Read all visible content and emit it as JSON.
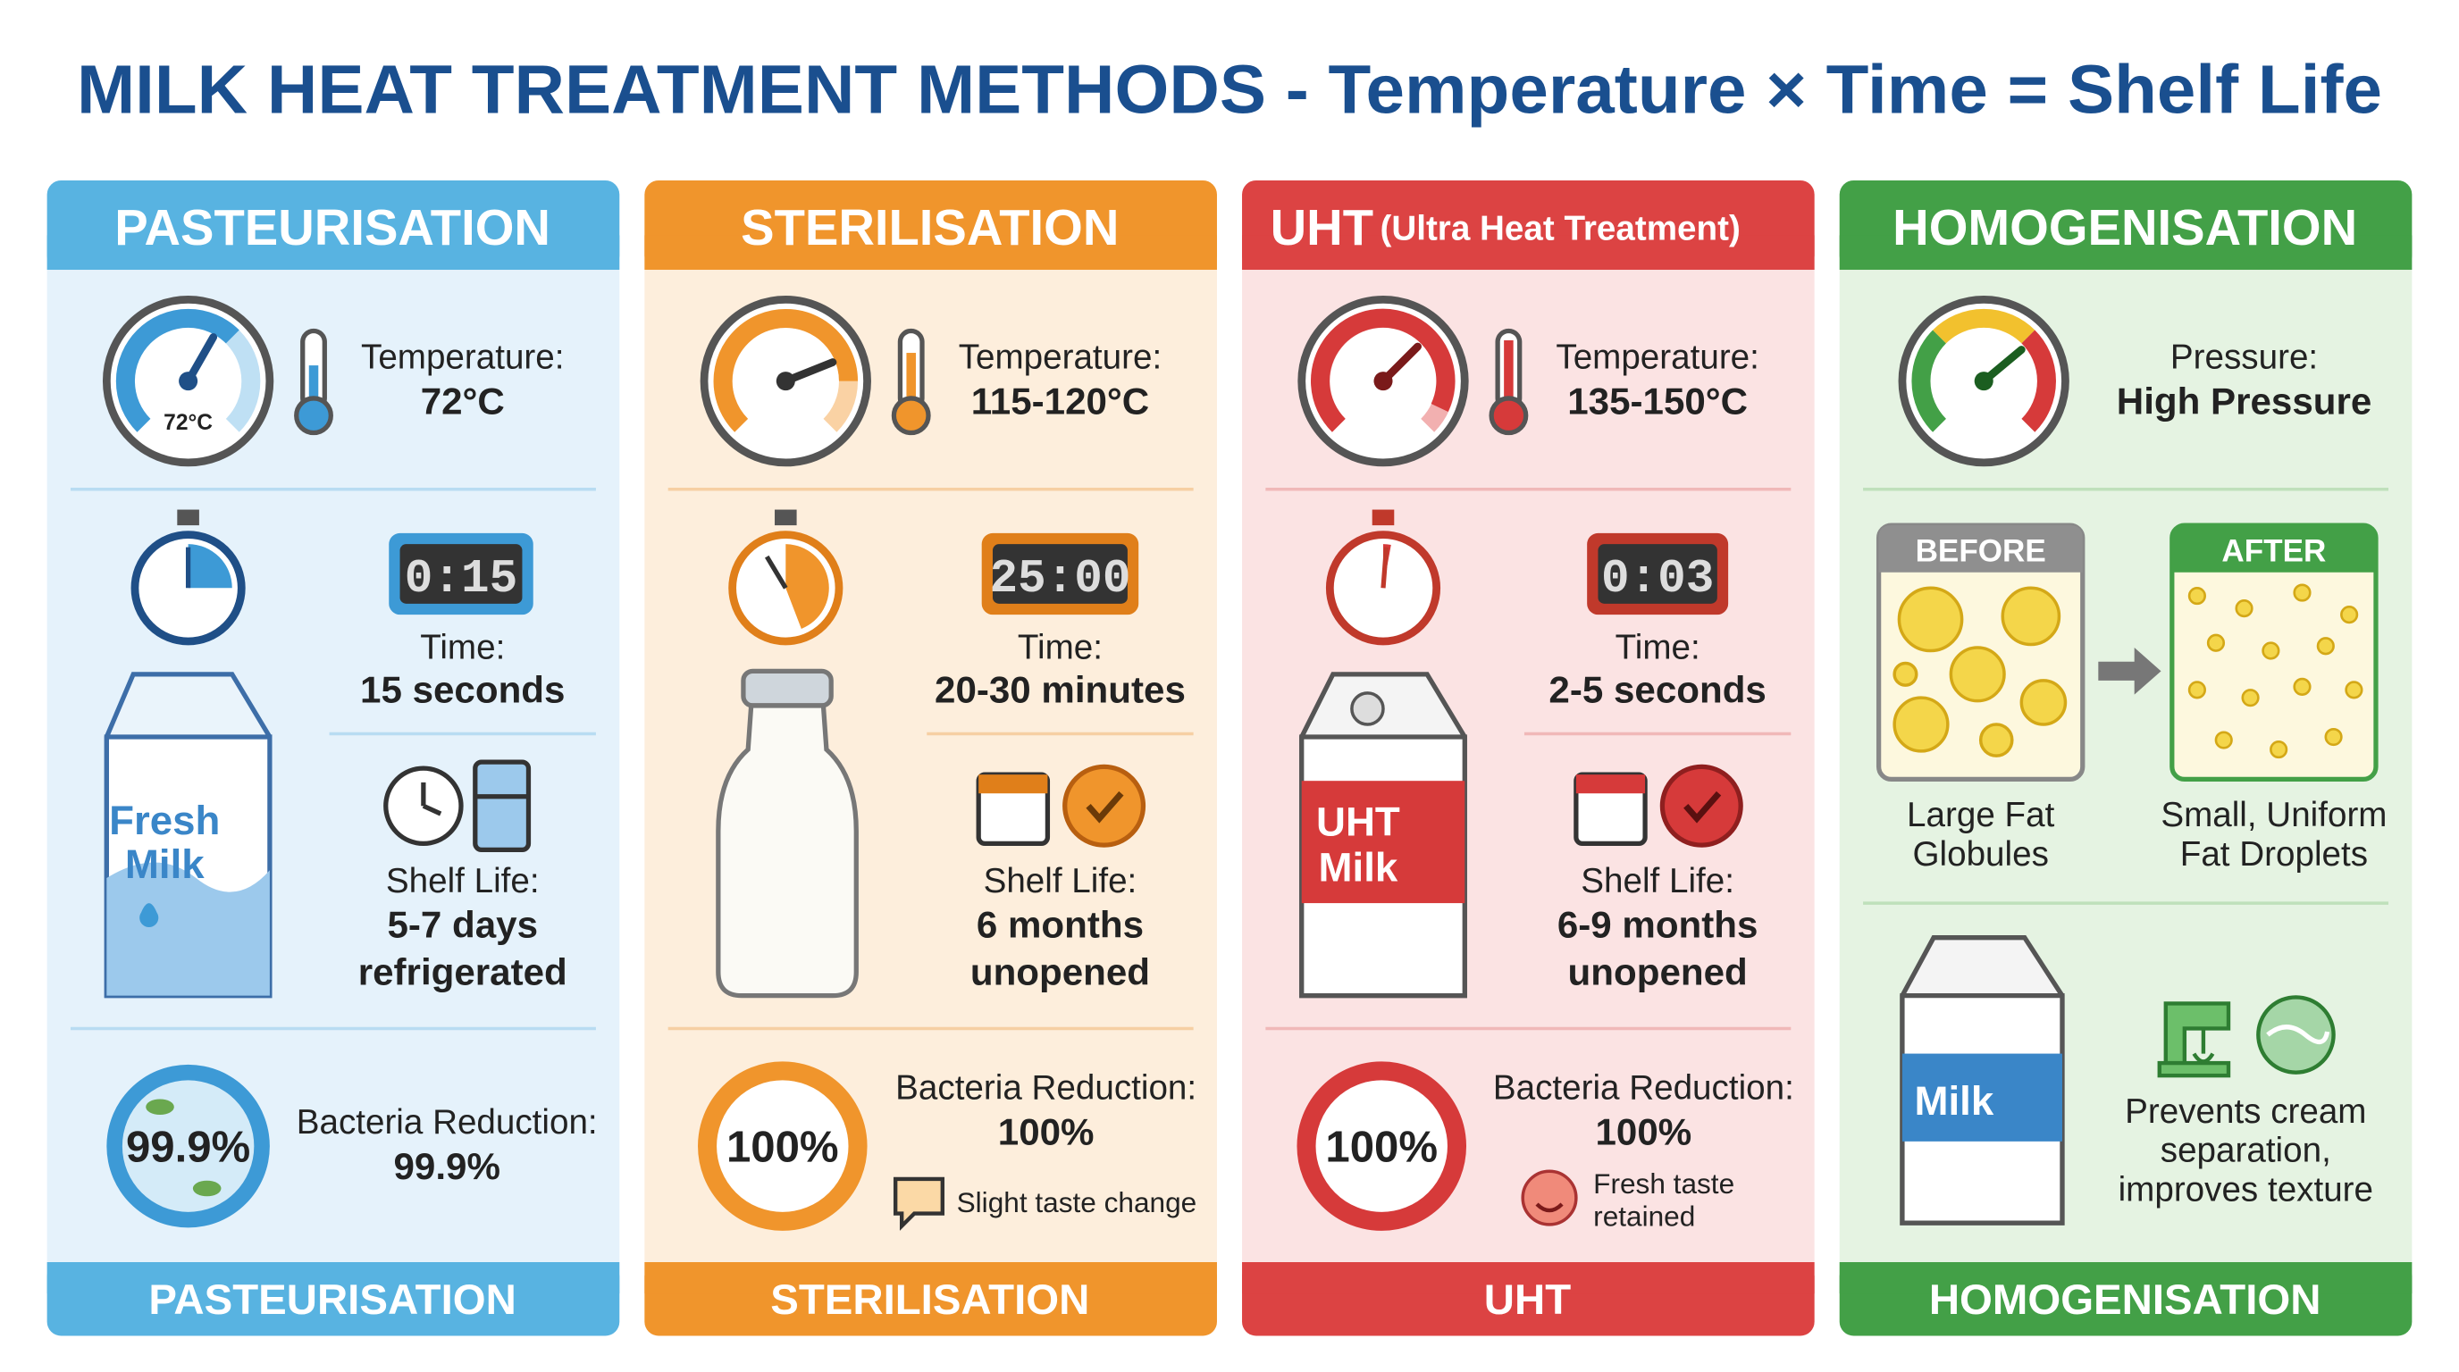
{
  "header": {
    "title": "MILK HEAT TREATMENT METHODS - Temperature × Time = Shelf Life"
  },
  "columns": [
    {
      "title": "PASTEURISATION",
      "gauge": "72°C",
      "temp_label": "Temperature:",
      "temp": "72°C",
      "timer": "0:15",
      "time_label": "Time:",
      "time": "15 seconds",
      "carton": [
        "Fresh",
        "Milk"
      ],
      "shelf_label": "Shelf Life:",
      "shelf": [
        "5-7 days",
        "refrigerated"
      ],
      "badge": "99.9%",
      "bacteria_label": "Bacteria Reduction:",
      "bacteria": "99.9%",
      "footer": "PASTEURISATION"
    },
    {
      "title": "STERILISATION",
      "temp_label": "Temperature:",
      "temp": "115-120°C",
      "timer": "25:00",
      "time_label": "Time:",
      "time": "20-30 minutes",
      "shelf_label": "Shelf Life:",
      "shelf": [
        "6 months",
        "unopened"
      ],
      "badge": "100%",
      "bacteria_label": "Bacteria Reduction:",
      "bacteria": "100%",
      "note": "Slight taste change",
      "footer": "STERILISATION"
    },
    {
      "title": "UHT",
      "subtitle": "(Ultra Heat Treatment)",
      "temp_label": "Temperature:",
      "temp": "135-150°C",
      "timer": "0:03",
      "time_label": "Time:",
      "time": "2-5 seconds",
      "carton": [
        "UHT",
        "Milk"
      ],
      "shelf_label": "Shelf Life:",
      "shelf": [
        "6-9 months",
        "unopened"
      ],
      "badge": "100%",
      "bacteria_label": "Bacteria Reduction:",
      "bacteria": "100%",
      "note": [
        "Fresh taste",
        "retained"
      ],
      "footer": "UHT"
    },
    {
      "title": "HOMOGENISATION",
      "pressure_label": "Pressure:",
      "pressure": "High Pressure",
      "before": "BEFORE",
      "after": "AFTER",
      "before_caption": [
        "Large Fat",
        "Globules"
      ],
      "after_caption": [
        "Small, Uniform",
        "Fat Droplets"
      ],
      "carton": [
        "Milk"
      ],
      "note": [
        "Prevents cream",
        "separation,",
        "improves texture"
      ],
      "footer": "HOMOGENISATION"
    }
  ]
}
